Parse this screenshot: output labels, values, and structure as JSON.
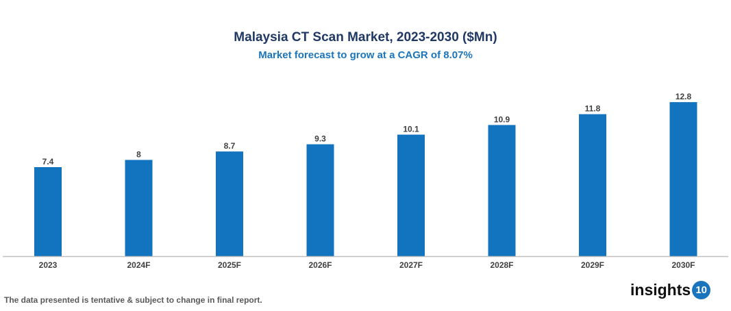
{
  "chart_data": {
    "type": "bar",
    "title": "Malaysia CT Scan Market, 2023-2030 ($Mn)",
    "subtitle": "Market forecast to grow at a CAGR of 8.07%",
    "categories": [
      "2023",
      "2024F",
      "2025F",
      "2026F",
      "2027F",
      "2028F",
      "2029F",
      "2030F"
    ],
    "values": [
      7.4,
      8,
      8.7,
      9.3,
      10.1,
      10.9,
      11.8,
      12.8
    ],
    "xlabel": "",
    "ylabel": "",
    "ylim": [
      0,
      14
    ],
    "grid": false,
    "bar_color": "#1273be"
  },
  "footnote": "The data presented is tentative & subject to change in final report.",
  "logo": {
    "text": "insights",
    "badge": "10"
  }
}
